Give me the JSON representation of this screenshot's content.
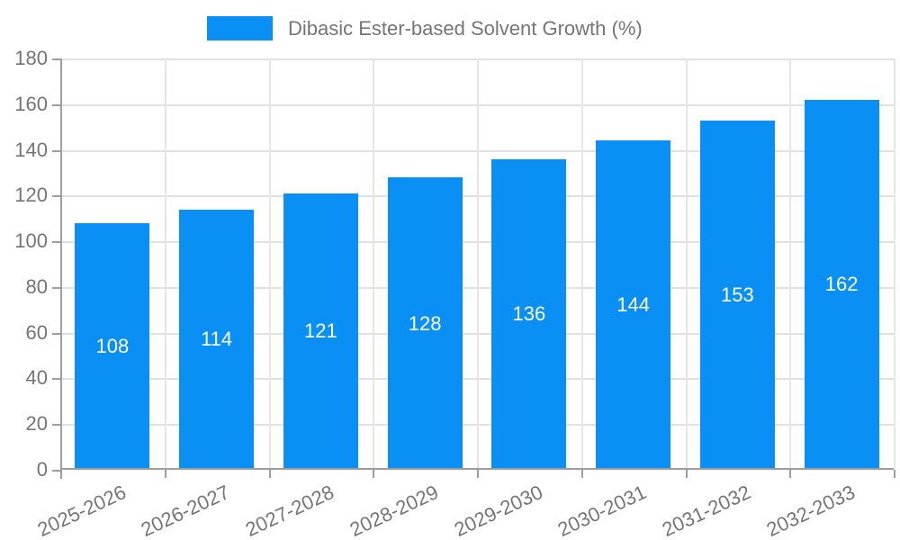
{
  "chart_data": {
    "type": "bar",
    "title": "Dibasic Ester-based Solvent Growth (%)",
    "legend_label": "Dibasic Ester-based Solvent Growth (%)",
    "legend_position": "top",
    "categories": [
      "2025-2026",
      "2026-2027",
      "2027-2028",
      "2028-2029",
      "2029-2030",
      "2030-2031",
      "2031-2032",
      "2032-2033"
    ],
    "values": [
      108,
      114,
      121,
      128,
      136,
      144,
      153,
      162
    ],
    "xlabel": "",
    "ylabel": "",
    "ylim": [
      0,
      180
    ],
    "ytick_step": 20,
    "ytick_labels": [
      "0",
      "20",
      "40",
      "60",
      "80",
      "100",
      "120",
      "140",
      "160",
      "180"
    ],
    "grid": true,
    "bar_value_labels_shown": true,
    "colors": {
      "bar": "#0a90f5",
      "bar_label_text": "#ffffff",
      "axis_text": "#757575",
      "grid_line": "#e0e0e0",
      "axis_line": "#9e9e9e"
    }
  }
}
